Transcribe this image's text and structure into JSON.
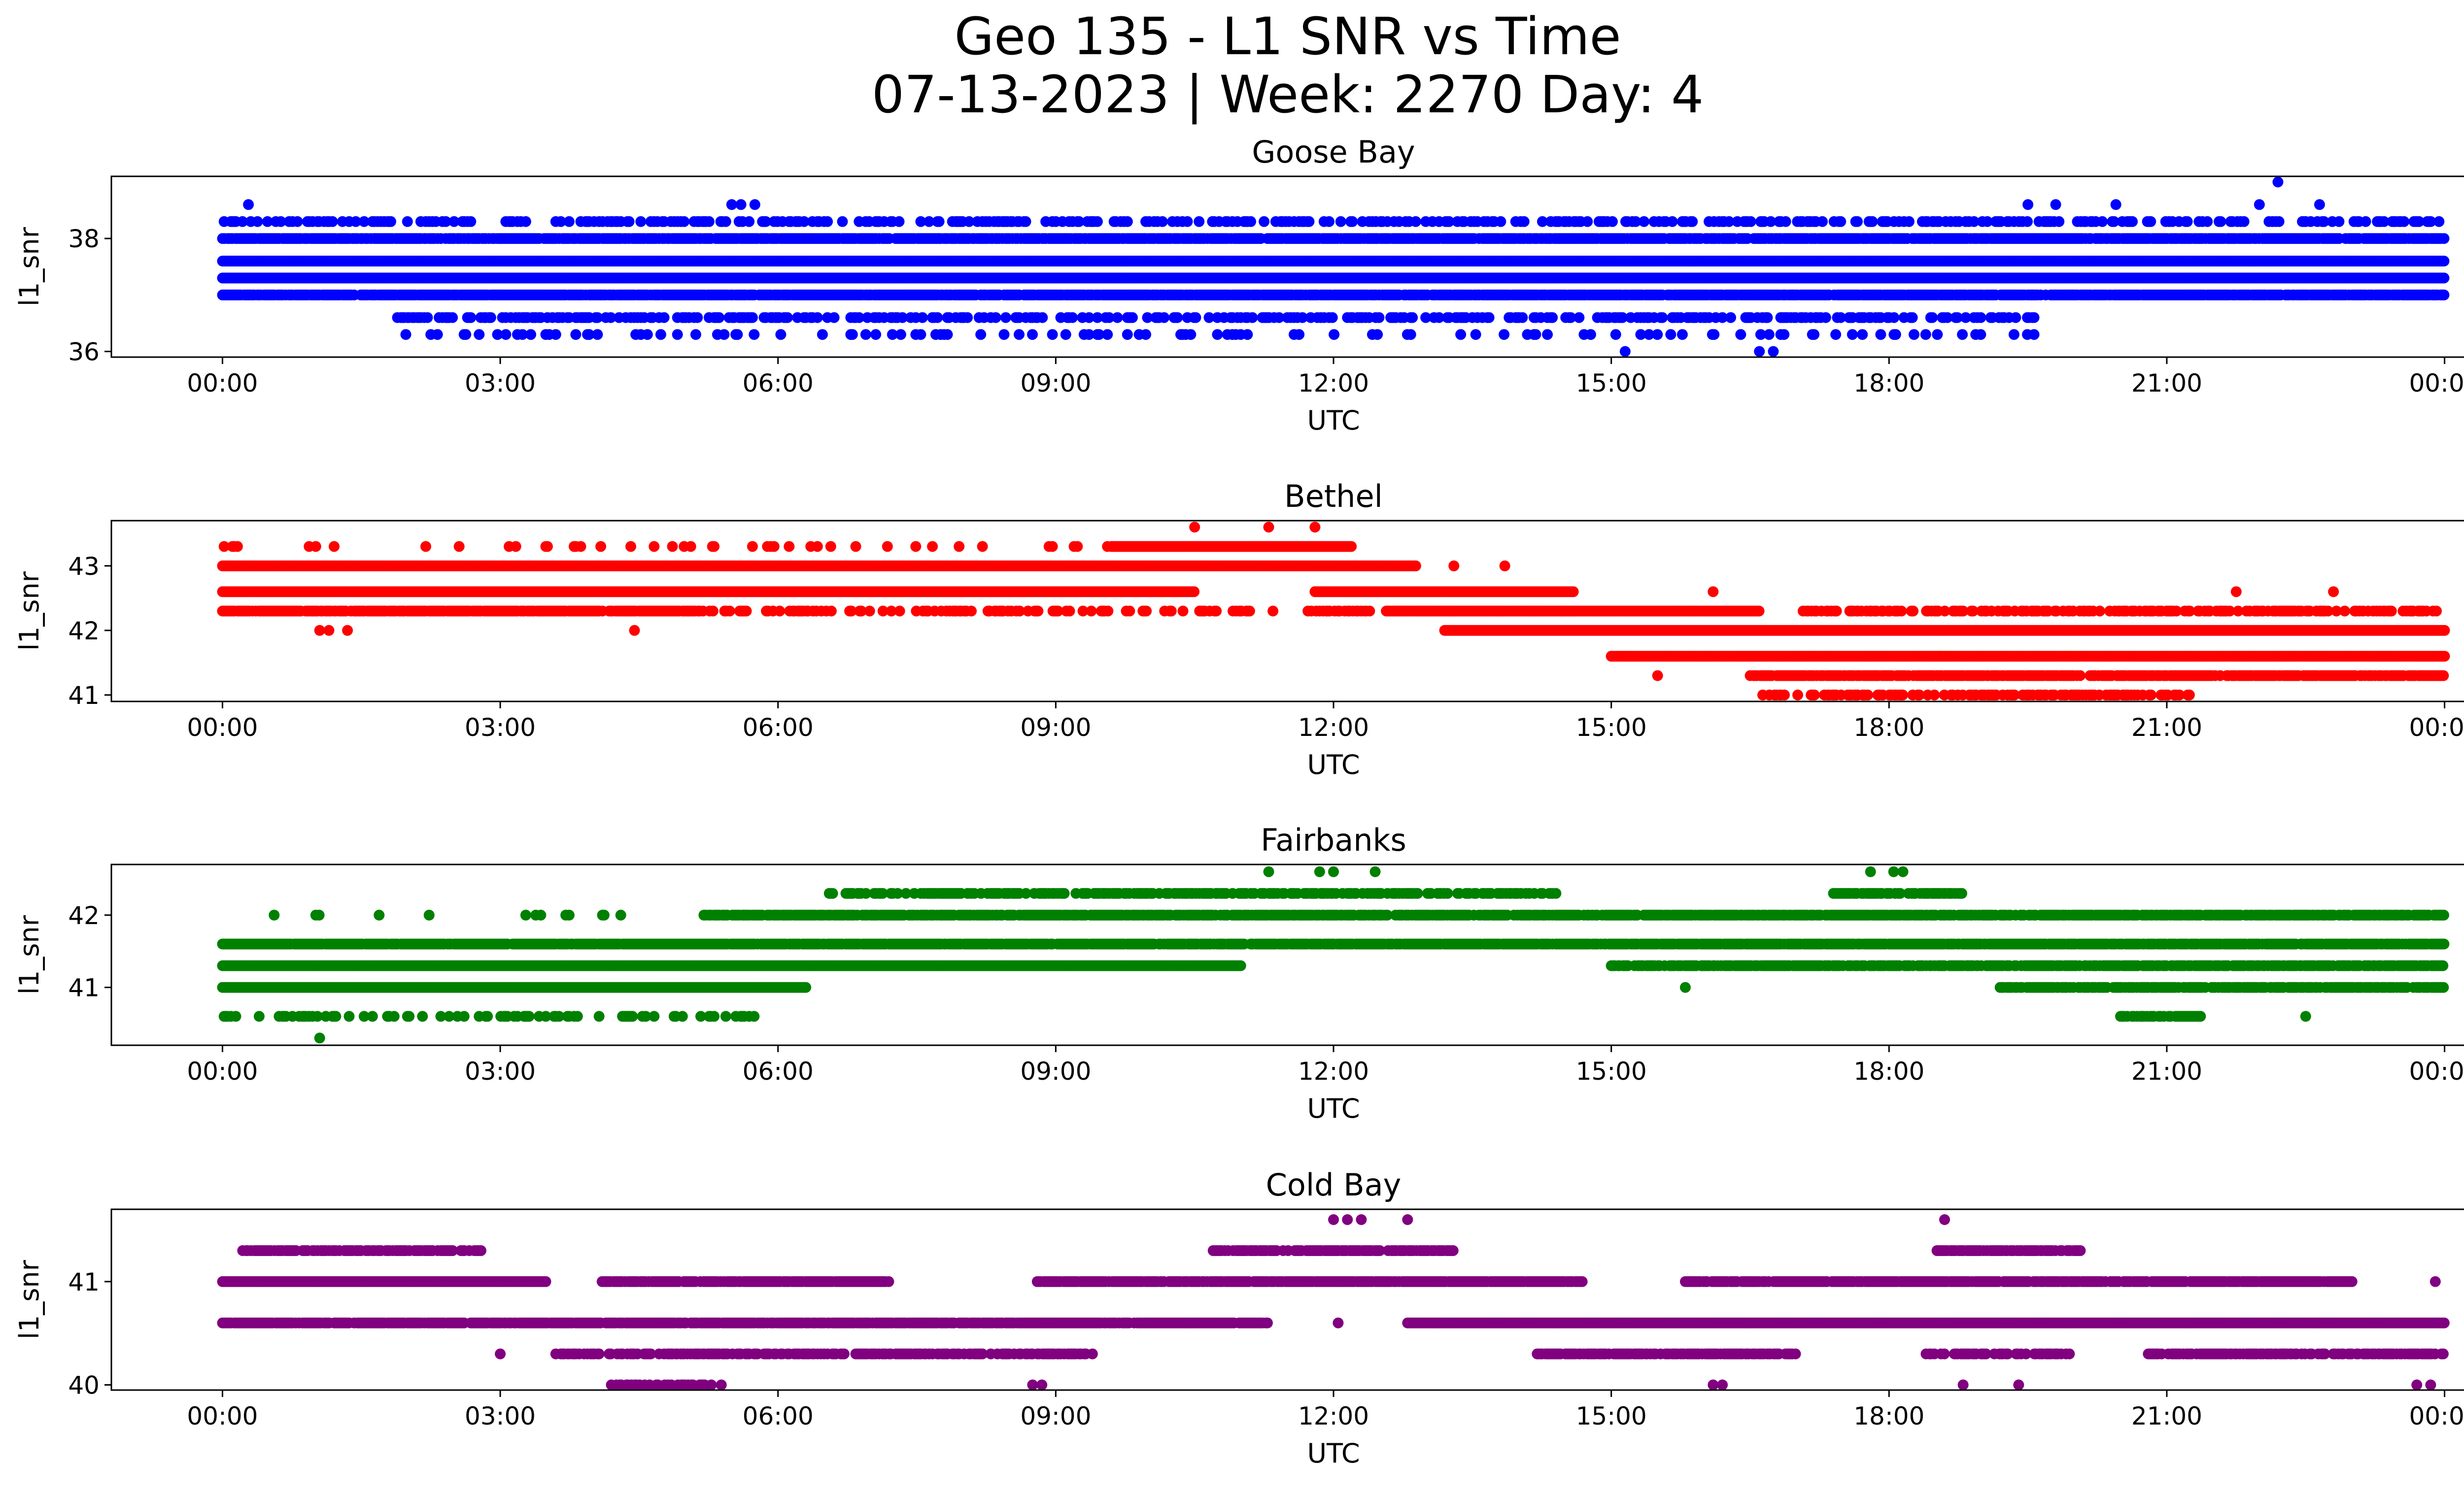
{
  "figure": {
    "title_line1": "Geo 135 - L1 SNR vs Time",
    "title_line2": "07-13-2023 | Week: 2270 Day: 4"
  },
  "chart_data": [
    {
      "type": "scatter",
      "title": "Goose Bay",
      "xlabel": "UTC",
      "ylabel": "l1_snr",
      "color": "#0000ff",
      "x_ticks": [
        "00:00",
        "03:00",
        "06:00",
        "09:00",
        "12:00",
        "15:00",
        "18:00",
        "21:00",
        "00:00"
      ],
      "xlim_hours": [
        -1.2,
        25.2
      ],
      "ylim": [
        35.9,
        39.1
      ],
      "y_ticks": [
        36,
        38
      ],
      "bands": [
        {
          "y": 38.3,
          "start": 0,
          "end": 24,
          "density": 0.3
        },
        {
          "y": 38.0,
          "start": 0,
          "end": 24,
          "density": 0.85
        },
        {
          "y": 37.6,
          "start": 0,
          "end": 24,
          "density": 1.0
        },
        {
          "y": 37.3,
          "start": 0,
          "end": 24,
          "density": 1.0
        },
        {
          "y": 37.0,
          "start": 0,
          "end": 24,
          "density": 0.9
        },
        {
          "y": 36.6,
          "start": 1.8,
          "end": 19.6,
          "density": 0.35
        },
        {
          "y": 36.3,
          "start": 1.8,
          "end": 19.6,
          "density": 0.1
        }
      ],
      "points": [
        {
          "x": 0.28,
          "y": 38.6
        },
        {
          "x": 5.5,
          "y": 38.6
        },
        {
          "x": 5.6,
          "y": 38.6
        },
        {
          "x": 5.75,
          "y": 38.6
        },
        {
          "x": 19.5,
          "y": 38.6
        },
        {
          "x": 19.8,
          "y": 38.6
        },
        {
          "x": 20.45,
          "y": 38.6
        },
        {
          "x": 22.0,
          "y": 38.6
        },
        {
          "x": 22.65,
          "y": 38.6
        },
        {
          "x": 22.2,
          "y": 39.0
        },
        {
          "x": 15.15,
          "y": 36.0
        },
        {
          "x": 16.6,
          "y": 36.0
        },
        {
          "x": 16.75,
          "y": 36.0
        }
      ]
    },
    {
      "type": "scatter",
      "title": "Bethel",
      "xlabel": "UTC",
      "ylabel": "l1_snr",
      "color": "#ff0000",
      "x_ticks": [
        "00:00",
        "03:00",
        "06:00",
        "09:00",
        "12:00",
        "15:00",
        "18:00",
        "21:00",
        "00:00"
      ],
      "xlim_hours": [
        -1.2,
        25.2
      ],
      "ylim": [
        40.9,
        43.7
      ],
      "y_ticks": [
        41,
        42,
        43
      ],
      "bands": [
        {
          "y": 43.3,
          "start": 9.6,
          "end": 12.2,
          "density": 1.0
        },
        {
          "y": 43.3,
          "start": 0,
          "end": 9.6,
          "density": 0.1
        },
        {
          "y": 43.0,
          "start": 0,
          "end": 12.9,
          "density": 1.0
        },
        {
          "y": 42.6,
          "start": 0,
          "end": 10.5,
          "density": 1.0
        },
        {
          "y": 42.6,
          "start": 11.8,
          "end": 14.6,
          "density": 1.0
        },
        {
          "y": 42.3,
          "start": 0,
          "end": 5.1,
          "density": 0.85
        },
        {
          "y": 42.3,
          "start": 5.1,
          "end": 14.6,
          "density": 0.3
        },
        {
          "y": 42.3,
          "start": 12.6,
          "end": 16.6,
          "density": 1.0
        },
        {
          "y": 42.3,
          "start": 17.0,
          "end": 24,
          "density": 0.45
        },
        {
          "y": 42.0,
          "start": 13.2,
          "end": 24,
          "density": 1.0
        },
        {
          "y": 41.6,
          "start": 15.0,
          "end": 24,
          "density": 1.0
        },
        {
          "y": 41.3,
          "start": 16.5,
          "end": 24,
          "density": 0.85
        },
        {
          "y": 41.0,
          "start": 16.6,
          "end": 21.3,
          "density": 0.45
        }
      ],
      "points": [
        {
          "x": 10.5,
          "y": 43.6
        },
        {
          "x": 11.3,
          "y": 43.6
        },
        {
          "x": 11.8,
          "y": 43.6
        },
        {
          "x": 1.05,
          "y": 42.0
        },
        {
          "x": 1.15,
          "y": 42.0
        },
        {
          "x": 1.35,
          "y": 42.0
        },
        {
          "x": 4.45,
          "y": 42.0
        },
        {
          "x": 15.5,
          "y": 41.3
        },
        {
          "x": 16.1,
          "y": 42.6
        },
        {
          "x": 21.75,
          "y": 42.6
        },
        {
          "x": 22.8,
          "y": 42.6
        },
        {
          "x": 13.3,
          "y": 43.0
        },
        {
          "x": 13.85,
          "y": 43.0
        }
      ]
    },
    {
      "type": "scatter",
      "title": "Fairbanks",
      "xlabel": "UTC",
      "ylabel": "l1_snr",
      "color": "#008000",
      "x_ticks": [
        "00:00",
        "03:00",
        "06:00",
        "09:00",
        "12:00",
        "15:00",
        "18:00",
        "21:00",
        "00:00"
      ],
      "xlim_hours": [
        -1.2,
        25.2
      ],
      "ylim": [
        40.2,
        42.7
      ],
      "y_ticks": [
        41,
        42
      ],
      "bands": [
        {
          "y": 42.3,
          "start": 6.5,
          "end": 14.5,
          "density": 0.55
        },
        {
          "y": 42.3,
          "start": 17.4,
          "end": 18.8,
          "density": 0.7
        },
        {
          "y": 42.0,
          "start": 0,
          "end": 5.2,
          "density": 0.08
        },
        {
          "y": 42.0,
          "start": 5.2,
          "end": 24,
          "density": 0.8
        },
        {
          "y": 41.6,
          "start": 0,
          "end": 24,
          "density": 0.92
        },
        {
          "y": 41.3,
          "start": 0,
          "end": 11.0,
          "density": 1.0
        },
        {
          "y": 41.3,
          "start": 15.0,
          "end": 24,
          "density": 0.8
        },
        {
          "y": 41.0,
          "start": 0,
          "end": 6.3,
          "density": 1.0
        },
        {
          "y": 41.0,
          "start": 19.2,
          "end": 24,
          "density": 0.8
        },
        {
          "y": 40.6,
          "start": 0,
          "end": 5.8,
          "density": 0.25
        },
        {
          "y": 40.6,
          "start": 20.5,
          "end": 21.4,
          "density": 0.6
        }
      ],
      "points": [
        {
          "x": 11.3,
          "y": 42.6
        },
        {
          "x": 11.85,
          "y": 42.6
        },
        {
          "x": 12.0,
          "y": 42.6
        },
        {
          "x": 12.45,
          "y": 42.6
        },
        {
          "x": 17.8,
          "y": 42.6
        },
        {
          "x": 18.05,
          "y": 42.6
        },
        {
          "x": 18.15,
          "y": 42.6
        },
        {
          "x": 1.05,
          "y": 40.3
        },
        {
          "x": 15.8,
          "y": 41.0
        },
        {
          "x": 22.5,
          "y": 40.6
        },
        {
          "x": 10.3,
          "y": 41.3
        }
      ]
    },
    {
      "type": "scatter",
      "title": "Cold Bay",
      "xlabel": "UTC",
      "ylabel": "l1_snr",
      "color": "#800080",
      "x_ticks": [
        "00:00",
        "03:00",
        "06:00",
        "09:00",
        "12:00",
        "15:00",
        "18:00",
        "21:00",
        "00:00"
      ],
      "xlim_hours": [
        -1.2,
        25.2
      ],
      "ylim": [
        39.95,
        41.7
      ],
      "y_ticks": [
        40,
        41
      ],
      "bands": [
        {
          "y": 41.3,
          "start": 0.2,
          "end": 2.8,
          "density": 0.75
        },
        {
          "y": 41.3,
          "start": 10.7,
          "end": 13.3,
          "density": 0.75
        },
        {
          "y": 41.3,
          "start": 18.5,
          "end": 20.1,
          "density": 0.8
        },
        {
          "y": 41.0,
          "start": 0,
          "end": 3.5,
          "density": 1.0
        },
        {
          "y": 41.0,
          "start": 4.1,
          "end": 7.2,
          "density": 0.85
        },
        {
          "y": 41.0,
          "start": 8.8,
          "end": 14.7,
          "density": 0.9
        },
        {
          "y": 41.0,
          "start": 15.8,
          "end": 23.0,
          "density": 0.9
        },
        {
          "y": 40.6,
          "start": 0,
          "end": 11.3,
          "density": 0.9
        },
        {
          "y": 40.6,
          "start": 12.8,
          "end": 24,
          "density": 1.0
        },
        {
          "y": 40.3,
          "start": 3.6,
          "end": 9.4,
          "density": 0.65
        },
        {
          "y": 40.3,
          "start": 14.2,
          "end": 17.0,
          "density": 0.75
        },
        {
          "y": 40.3,
          "start": 18.4,
          "end": 20.0,
          "density": 0.6
        },
        {
          "y": 40.3,
          "start": 20.8,
          "end": 24,
          "density": 0.75
        },
        {
          "y": 40.0,
          "start": 4.2,
          "end": 5.4,
          "density": 0.4
        }
      ],
      "points": [
        {
          "x": 12.0,
          "y": 41.6
        },
        {
          "x": 12.15,
          "y": 41.6
        },
        {
          "x": 12.3,
          "y": 41.6
        },
        {
          "x": 12.8,
          "y": 41.6
        },
        {
          "x": 18.6,
          "y": 41.6
        },
        {
          "x": 12.05,
          "y": 40.6
        },
        {
          "x": 3.0,
          "y": 40.3
        },
        {
          "x": 8.75,
          "y": 40.0
        },
        {
          "x": 8.85,
          "y": 40.0
        },
        {
          "x": 16.1,
          "y": 40.0
        },
        {
          "x": 16.2,
          "y": 40.0
        },
        {
          "x": 18.8,
          "y": 40.0
        },
        {
          "x": 19.4,
          "y": 40.0
        },
        {
          "x": 23.7,
          "y": 40.0
        },
        {
          "x": 23.85,
          "y": 40.0
        },
        {
          "x": 23.9,
          "y": 41.0
        }
      ]
    }
  ]
}
